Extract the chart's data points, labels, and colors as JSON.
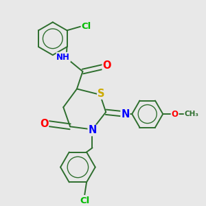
{
  "bg_color": "#e8e8e8",
  "bond_color": "#2d6e2d",
  "atom_colors": {
    "N": "#0000ff",
    "O": "#ff0000",
    "S": "#ccaa00",
    "Cl": "#00bb00",
    "H": "#666666",
    "C": "#2d6e2d"
  },
  "font_size": 8.5,
  "line_width": 1.4
}
